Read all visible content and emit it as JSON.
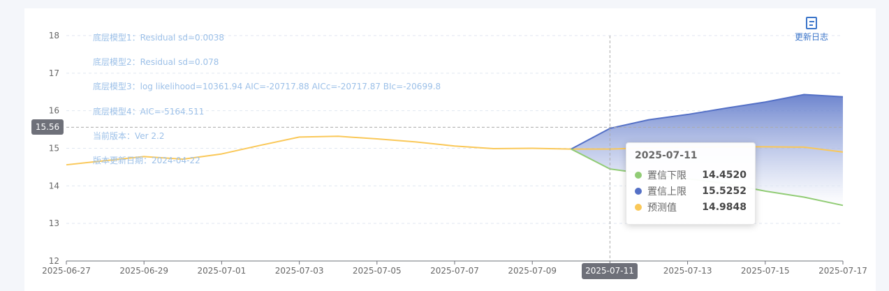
{
  "changelog": {
    "label": "更新日志",
    "icon": "document-icon"
  },
  "notes": [
    "底层模型1：Residual sd=0.0038",
    "底层模型2：Residual sd=0.078",
    "底层模型3：log likelihood=10361.94 AIC=-20717.88 AICc=-20717.87 BIc=-20699.8",
    "底层模型4：AIC=-5164.511",
    "当前版本：Ver 2.2",
    "版本更新日期：2024-04-22"
  ],
  "crosshair": {
    "y_value": "15.56",
    "x_value": "2025-07-11"
  },
  "tooltip": {
    "title": "2025-07-11",
    "rows": [
      {
        "name": "置信下限",
        "value": "14.4520",
        "color": "#91cc75"
      },
      {
        "name": "置信上限",
        "value": "15.5252",
        "color": "#5470c6"
      },
      {
        "name": "预测值",
        "value": "14.9848",
        "color": "#fac858"
      }
    ]
  },
  "chart_data": {
    "type": "line",
    "x": [
      "2025-06-27",
      "2025-06-28",
      "2025-06-29",
      "2025-06-30",
      "2025-07-01",
      "2025-07-02",
      "2025-07-03",
      "2025-07-04",
      "2025-07-05",
      "2025-07-06",
      "2025-07-07",
      "2025-07-08",
      "2025-07-09",
      "2025-07-10",
      "2025-07-11",
      "2025-07-12",
      "2025-07-13",
      "2025-07-14",
      "2025-07-15",
      "2025-07-16",
      "2025-07-17"
    ],
    "x_tick_labels": [
      "2025-06-27",
      "2025-06-29",
      "2025-07-01",
      "2025-07-03",
      "2025-07-05",
      "2025-07-07",
      "2025-07-09",
      "2025-07-11",
      "2025-07-13",
      "2025-07-15",
      "2025-07-17"
    ],
    "ylim": [
      12,
      18
    ],
    "y_ticks": [
      12,
      13,
      14,
      15,
      16,
      17,
      18
    ],
    "grid": true,
    "series": [
      {
        "name": "预测值",
        "color": "#fac858",
        "values": [
          14.56,
          14.67,
          14.78,
          14.71,
          14.85,
          15.08,
          15.3,
          15.32,
          15.25,
          15.17,
          15.06,
          14.99,
          15.0,
          14.98,
          14.98,
          15.01,
          15.03,
          15.04,
          15.04,
          15.03,
          14.9
        ]
      },
      {
        "name": "置信上限",
        "color": "#5470c6",
        "values": [
          null,
          null,
          null,
          null,
          null,
          null,
          null,
          null,
          null,
          null,
          null,
          null,
          null,
          14.98,
          15.53,
          15.76,
          15.9,
          16.07,
          16.23,
          16.43,
          16.37
        ]
      },
      {
        "name": "置信下限",
        "color": "#91cc75",
        "values": [
          null,
          null,
          null,
          null,
          null,
          null,
          null,
          null,
          null,
          null,
          null,
          null,
          null,
          14.98,
          14.45,
          14.31,
          14.19,
          14.06,
          13.86,
          13.7,
          13.48
        ]
      }
    ]
  }
}
